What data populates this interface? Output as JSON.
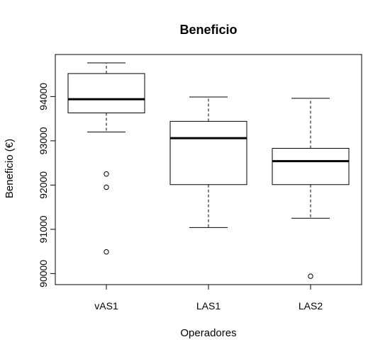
{
  "chart_data": {
    "type": "boxplot",
    "title": "Beneficio",
    "xlabel": "Operadores",
    "ylabel": "Beneficio (€)",
    "categories": [
      "vAS1",
      "LAS1",
      "LAS2"
    ],
    "ylim": [
      89750,
      94950
    ],
    "yticks": [
      90000,
      91000,
      92000,
      93000,
      94000
    ],
    "ytick_labels": [
      "90000",
      "91000",
      "92000",
      "93000",
      "94000"
    ],
    "boxes": [
      {
        "label": "vAS1",
        "whisker_low": 93200,
        "q1": 93630,
        "median": 93940,
        "q3": 94520,
        "whisker_high": 94760,
        "outliers": [
          92250,
          91950,
          90490
        ]
      },
      {
        "label": "LAS1",
        "whisker_low": 91040,
        "q1": 92010,
        "median": 93060,
        "q3": 93440,
        "whisker_high": 93990,
        "outliers": []
      },
      {
        "label": "LAS2",
        "whisker_low": 91250,
        "q1": 92010,
        "median": 92540,
        "q3": 92830,
        "whisker_high": 93960,
        "outliers": [
          89940
        ]
      }
    ],
    "grid": false,
    "legend": "none"
  }
}
